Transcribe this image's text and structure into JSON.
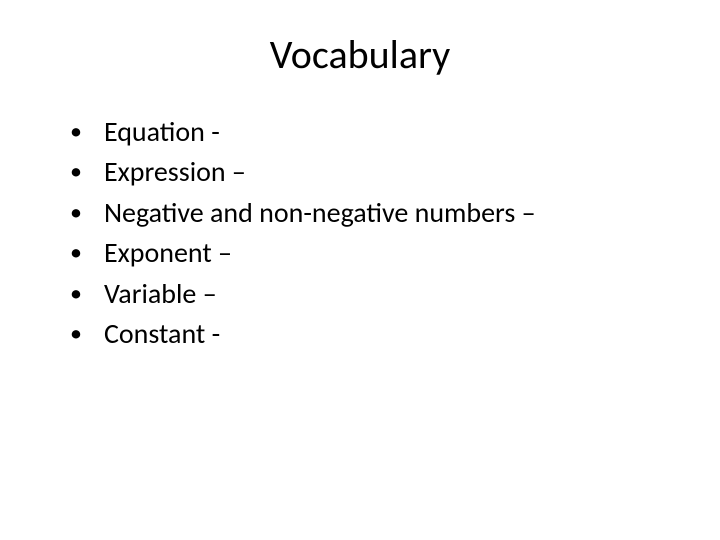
{
  "slide": {
    "title": "Vocabulary",
    "title_fontsize": 40,
    "items": [
      "Equation -",
      "Expression –",
      "Negative and non-negative numbers –",
      "Exponent –",
      "Variable –",
      "Constant -"
    ],
    "item_fontsize": 28,
    "text_color": "#000000",
    "background_color": "#ffffff",
    "bullet_char": "•"
  }
}
